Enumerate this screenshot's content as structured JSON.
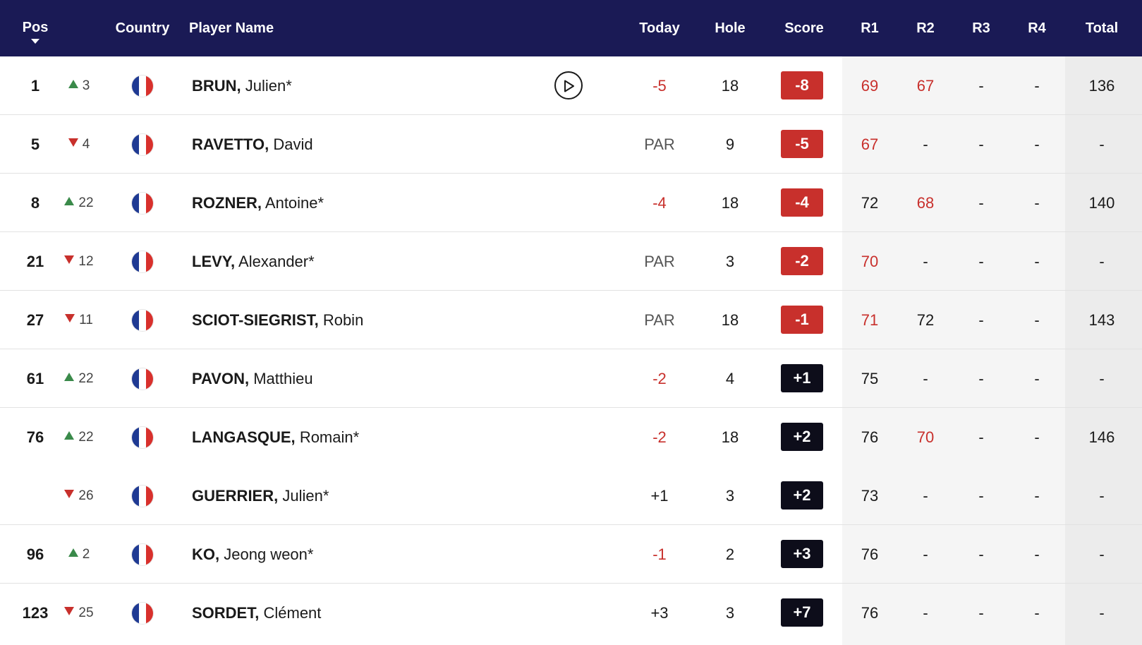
{
  "colors": {
    "header_bg": "#1a1a55",
    "under_par": "#c8302c",
    "over_par_badge": "#0d0d1a",
    "up": "#3a8a4a",
    "down": "#c8302c"
  },
  "header": {
    "pos": "Pos",
    "country": "Country",
    "player_name": "Player Name",
    "today": "Today",
    "hole": "Hole",
    "score": "Score",
    "r1": "R1",
    "r2": "R2",
    "r3": "R3",
    "r4": "R4",
    "total": "Total"
  },
  "rows": [
    {
      "pos": "1",
      "dir": "up",
      "move": "3",
      "country": "France",
      "last": "BRUN,",
      "first": "Julien*",
      "play": true,
      "today": "-5",
      "hole": "18",
      "score": "-8",
      "r1": "69",
      "r2": "67",
      "r3": "-",
      "r4": "-",
      "total": "136"
    },
    {
      "pos": "5",
      "dir": "down",
      "move": "4",
      "country": "France",
      "last": "RAVETTO,",
      "first": "David",
      "play": false,
      "today": "PAR",
      "hole": "9",
      "score": "-5",
      "r1": "67",
      "r2": "-",
      "r3": "-",
      "r4": "-",
      "total": "-"
    },
    {
      "pos": "8",
      "dir": "up",
      "move": "22",
      "country": "France",
      "last": "ROZNER,",
      "first": "Antoine*",
      "play": false,
      "today": "-4",
      "hole": "18",
      "score": "-4",
      "r1": "72",
      "r2": "68",
      "r3": "-",
      "r4": "-",
      "total": "140"
    },
    {
      "pos": "21",
      "dir": "down",
      "move": "12",
      "country": "France",
      "last": "LEVY,",
      "first": "Alexander*",
      "play": false,
      "today": "PAR",
      "hole": "3",
      "score": "-2",
      "r1": "70",
      "r2": "-",
      "r3": "-",
      "r4": "-",
      "total": "-"
    },
    {
      "pos": "27",
      "dir": "down",
      "move": "11",
      "country": "France",
      "last": "SCIOT-SIEGRIST,",
      "first": "Robin",
      "play": false,
      "today": "PAR",
      "hole": "18",
      "score": "-1",
      "r1": "71",
      "r2": "72",
      "r3": "-",
      "r4": "-",
      "total": "143"
    },
    {
      "pos": "61",
      "dir": "up",
      "move": "22",
      "country": "France",
      "last": "PAVON,",
      "first": "Matthieu",
      "play": false,
      "today": "-2",
      "hole": "4",
      "score": "+1",
      "r1": "75",
      "r2": "-",
      "r3": "-",
      "r4": "-",
      "total": "-"
    },
    {
      "pos": "76",
      "dir": "up",
      "move": "22",
      "country": "France",
      "last": "LANGASQUE,",
      "first": "Romain*",
      "play": false,
      "today": "-2",
      "hole": "18",
      "score": "+2",
      "r1": "76",
      "r2": "70",
      "r3": "-",
      "r4": "-",
      "total": "146"
    },
    {
      "pos": "",
      "dir": "down",
      "move": "26",
      "country": "France",
      "last": "GUERRIER,",
      "first": "Julien*",
      "play": false,
      "today": "+1",
      "hole": "3",
      "score": "+2",
      "r1": "73",
      "r2": "-",
      "r3": "-",
      "r4": "-",
      "total": "-"
    },
    {
      "pos": "96",
      "dir": "up",
      "move": "2",
      "country": "France",
      "last": "KO,",
      "first": "Jeong weon*",
      "play": false,
      "today": "-1",
      "hole": "2",
      "score": "+3",
      "r1": "76",
      "r2": "-",
      "r3": "-",
      "r4": "-",
      "total": "-"
    },
    {
      "pos": "123",
      "dir": "down",
      "move": "25",
      "country": "France",
      "last": "SORDET,",
      "first": "Clément",
      "play": false,
      "today": "+3",
      "hole": "3",
      "score": "+7",
      "r1": "76",
      "r2": "-",
      "r3": "-",
      "r4": "-",
      "total": "-"
    }
  ]
}
